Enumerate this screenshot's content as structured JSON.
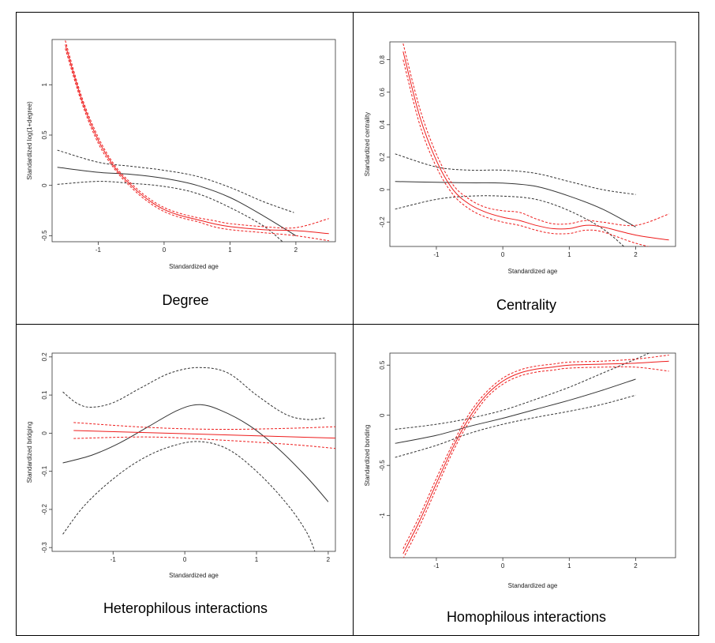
{
  "chart_data": [
    {
      "type": "line",
      "caption": "Degree",
      "xlabel": "Standardized age",
      "ylabel": "Standardized log(1+degree)",
      "xlim": [
        -1.7,
        2.6
      ],
      "ylim": [
        -0.56,
        1.45
      ],
      "xticks": [
        -1,
        0,
        1,
        2
      ],
      "yticks": [
        -0.5,
        0.0,
        0.5,
        1.0
      ],
      "grid": false,
      "series": [
        {
          "name": "black-fit",
          "color": "#333333",
          "style": "solid",
          "x": [
            -1.62,
            -1.0,
            -0.5,
            0.0,
            0.5,
            1.0,
            1.5,
            2.0
          ],
          "y": [
            0.18,
            0.13,
            0.11,
            0.07,
            0.0,
            -0.12,
            -0.3,
            -0.5
          ]
        },
        {
          "name": "black-upper",
          "color": "#333333",
          "style": "dashed",
          "x": [
            -1.62,
            -1.0,
            -0.5,
            0.0,
            0.5,
            1.0,
            1.5,
            1.97
          ],
          "y": [
            0.35,
            0.23,
            0.19,
            0.15,
            0.09,
            -0.02,
            -0.16,
            -0.27
          ]
        },
        {
          "name": "black-lower",
          "color": "#333333",
          "style": "dashed",
          "x": [
            -1.62,
            -1.0,
            -0.5,
            0.0,
            0.5,
            1.0,
            1.5,
            1.8
          ],
          "y": [
            0.01,
            0.04,
            0.02,
            -0.01,
            -0.08,
            -0.22,
            -0.4,
            -0.56
          ]
        },
        {
          "name": "red-fit",
          "color": "#ee1c1c",
          "style": "solid",
          "x": [
            -1.5,
            -1.25,
            -1.0,
            -0.75,
            -0.5,
            -0.25,
            0.0,
            0.25,
            0.5,
            0.75,
            1.0,
            1.5,
            2.0,
            2.5
          ],
          "y": [
            1.4,
            0.85,
            0.45,
            0.18,
            0.0,
            -0.14,
            -0.24,
            -0.3,
            -0.34,
            -0.38,
            -0.41,
            -0.44,
            -0.45,
            -0.48
          ]
        },
        {
          "name": "red-upper",
          "color": "#ee1c1c",
          "style": "dashed",
          "x": [
            -1.5,
            -1.25,
            -1.0,
            -0.75,
            -0.5,
            -0.25,
            0.0,
            0.25,
            0.5,
            0.75,
            1.0,
            1.5,
            2.0,
            2.5
          ],
          "y": [
            1.44,
            0.88,
            0.48,
            0.2,
            0.02,
            -0.12,
            -0.22,
            -0.28,
            -0.32,
            -0.35,
            -0.38,
            -0.41,
            -0.42,
            -0.33
          ]
        },
        {
          "name": "red-lower",
          "color": "#ee1c1c",
          "style": "dashed",
          "x": [
            -1.5,
            -1.25,
            -1.0,
            -0.75,
            -0.5,
            -0.25,
            0.0,
            0.25,
            0.5,
            0.75,
            1.0,
            1.5,
            2.0,
            2.5
          ],
          "y": [
            1.36,
            0.82,
            0.42,
            0.16,
            -0.02,
            -0.16,
            -0.26,
            -0.32,
            -0.36,
            -0.41,
            -0.44,
            -0.47,
            -0.5,
            -0.55
          ]
        }
      ]
    },
    {
      "type": "line",
      "caption": "Centrality",
      "xlabel": "Standardized age",
      "ylabel": "Standardized centrality",
      "xlim": [
        -1.7,
        2.6
      ],
      "ylim": [
        -0.35,
        0.91
      ],
      "xticks": [
        -1,
        0,
        1,
        2
      ],
      "yticks": [
        -0.2,
        0.0,
        0.2,
        0.4,
        0.6,
        0.8
      ],
      "grid": false,
      "series": [
        {
          "name": "black-fit",
          "color": "#333333",
          "style": "solid",
          "x": [
            -1.62,
            -1.0,
            -0.5,
            0.0,
            0.5,
            1.0,
            1.5,
            2.0
          ],
          "y": [
            0.05,
            0.045,
            0.042,
            0.04,
            0.02,
            -0.04,
            -0.12,
            -0.23
          ]
        },
        {
          "name": "black-upper",
          "color": "#333333",
          "style": "dashed",
          "x": [
            -1.62,
            -1.0,
            -0.5,
            0.0,
            0.5,
            1.0,
            1.5,
            2.0
          ],
          "y": [
            0.22,
            0.14,
            0.12,
            0.12,
            0.1,
            0.05,
            0.0,
            -0.03
          ]
        },
        {
          "name": "black-lower",
          "color": "#333333",
          "style": "dashed",
          "x": [
            -1.62,
            -1.0,
            -0.5,
            0.0,
            0.5,
            1.0,
            1.5,
            1.85
          ],
          "y": [
            -0.12,
            -0.06,
            -0.04,
            -0.04,
            -0.06,
            -0.13,
            -0.24,
            -0.36
          ]
        },
        {
          "name": "red-fit",
          "color": "#ee1c1c",
          "style": "solid",
          "x": [
            -1.5,
            -1.25,
            -1.0,
            -0.75,
            -0.5,
            -0.25,
            0.0,
            0.25,
            0.5,
            0.75,
            1.0,
            1.25,
            1.5,
            2.0,
            2.5
          ],
          "y": [
            0.85,
            0.45,
            0.18,
            0.0,
            -0.09,
            -0.14,
            -0.17,
            -0.19,
            -0.22,
            -0.24,
            -0.24,
            -0.22,
            -0.23,
            -0.28,
            -0.31
          ]
        },
        {
          "name": "red-upper",
          "color": "#ee1c1c",
          "style": "dashed",
          "x": [
            -1.5,
            -1.25,
            -1.0,
            -0.75,
            -0.5,
            -0.25,
            0.0,
            0.25,
            0.5,
            0.75,
            1.0,
            1.25,
            1.5,
            2.0,
            2.5
          ],
          "y": [
            0.9,
            0.5,
            0.22,
            0.03,
            -0.06,
            -0.11,
            -0.13,
            -0.14,
            -0.18,
            -0.21,
            -0.21,
            -0.19,
            -0.2,
            -0.22,
            -0.15
          ]
        },
        {
          "name": "red-lower",
          "color": "#ee1c1c",
          "style": "dashed",
          "x": [
            -1.5,
            -1.25,
            -1.0,
            -0.75,
            -0.5,
            -0.25,
            0.0,
            0.25,
            0.5,
            0.75,
            1.0,
            1.25,
            1.5,
            2.0,
            2.5
          ],
          "y": [
            0.8,
            0.4,
            0.14,
            -0.03,
            -0.12,
            -0.17,
            -0.2,
            -0.22,
            -0.25,
            -0.27,
            -0.27,
            -0.25,
            -0.26,
            -0.33,
            -0.38
          ]
        }
      ]
    },
    {
      "type": "line",
      "caption": "Heterophilous interactions",
      "xlabel": "Standardized age",
      "ylabel": "Standardized bridging",
      "xlim": [
        -1.85,
        2.1
      ],
      "ylim": [
        -0.31,
        0.21
      ],
      "xticks": [
        -1,
        0,
        1,
        2
      ],
      "yticks": [
        -0.3,
        -0.2,
        -0.1,
        0.0,
        0.1,
        0.2
      ],
      "grid": false,
      "series": [
        {
          "name": "black-fit",
          "color": "#333333",
          "style": "solid",
          "x": [
            -1.7,
            -1.3,
            -0.9,
            -0.5,
            -0.1,
            0.2,
            0.5,
            0.9,
            1.3,
            1.7,
            2.0
          ],
          "y": [
            -0.078,
            -0.058,
            -0.025,
            0.018,
            0.06,
            0.075,
            0.06,
            0.02,
            -0.04,
            -0.115,
            -0.18
          ]
        },
        {
          "name": "black-upper",
          "color": "#333333",
          "style": "dashed",
          "x": [
            -1.7,
            -1.5,
            -1.3,
            -1.0,
            -0.6,
            -0.2,
            0.2,
            0.6,
            1.0,
            1.4,
            1.7,
            1.95
          ],
          "y": [
            0.108,
            0.078,
            0.068,
            0.08,
            0.12,
            0.158,
            0.172,
            0.158,
            0.1,
            0.05,
            0.036,
            0.04
          ]
        },
        {
          "name": "black-lower",
          "color": "#333333",
          "style": "dashed",
          "x": [
            -1.7,
            -1.4,
            -1.0,
            -0.6,
            -0.2,
            0.2,
            0.6,
            1.0,
            1.4,
            1.7,
            1.85
          ],
          "y": [
            -0.265,
            -0.19,
            -0.12,
            -0.068,
            -0.035,
            -0.022,
            -0.042,
            -0.1,
            -0.18,
            -0.26,
            -0.33
          ]
        },
        {
          "name": "red-fit",
          "color": "#ee1c1c",
          "style": "solid",
          "x": [
            -1.55,
            2.1
          ],
          "y": [
            0.007,
            -0.013
          ]
        },
        {
          "name": "red-upper",
          "color": "#ee1c1c",
          "style": "dashed",
          "x": [
            -1.55,
            -0.5,
            0.5,
            1.5,
            2.1
          ],
          "y": [
            0.028,
            0.015,
            0.01,
            0.013,
            0.017
          ]
        },
        {
          "name": "red-lower",
          "color": "#ee1c1c",
          "style": "dashed",
          "x": [
            -1.55,
            -0.5,
            0.5,
            1.5,
            2.1
          ],
          "y": [
            -0.014,
            -0.01,
            -0.018,
            -0.03,
            -0.04
          ]
        }
      ]
    },
    {
      "type": "line",
      "caption": "Homophilous interactions",
      "xlabel": "Standardized age",
      "ylabel": "Standardized bonding",
      "xlim": [
        -1.7,
        2.6
      ],
      "ylim": [
        -1.42,
        0.62
      ],
      "xticks": [
        -1,
        0,
        1,
        2
      ],
      "yticks": [
        -1.0,
        -0.5,
        0.0,
        0.5
      ],
      "grid": false,
      "series": [
        {
          "name": "black-fit",
          "color": "#333333",
          "style": "solid",
          "x": [
            -1.62,
            -1.0,
            -0.5,
            0.0,
            0.5,
            1.0,
            1.5,
            2.0
          ],
          "y": [
            -0.28,
            -0.2,
            -0.11,
            -0.03,
            0.06,
            0.15,
            0.25,
            0.36
          ]
        },
        {
          "name": "black-upper",
          "color": "#333333",
          "style": "dashed",
          "x": [
            -1.62,
            -1.0,
            -0.5,
            0.0,
            0.5,
            1.0,
            1.5,
            2.0,
            2.2
          ],
          "y": [
            -0.14,
            -0.09,
            -0.03,
            0.05,
            0.16,
            0.28,
            0.42,
            0.56,
            0.62
          ]
        },
        {
          "name": "black-lower",
          "color": "#333333",
          "style": "dashed",
          "x": [
            -1.62,
            -1.0,
            -0.5,
            0.0,
            0.5,
            1.0,
            1.5,
            2.0
          ],
          "y": [
            -0.42,
            -0.3,
            -0.18,
            -0.09,
            -0.02,
            0.04,
            0.11,
            0.2
          ]
        },
        {
          "name": "red-fit",
          "color": "#ee1c1c",
          "style": "solid",
          "x": [
            -1.5,
            -1.25,
            -1.0,
            -0.75,
            -0.5,
            -0.25,
            0.0,
            0.25,
            0.5,
            0.75,
            1.0,
            1.5,
            2.0,
            2.5
          ],
          "y": [
            -1.38,
            -1.05,
            -0.68,
            -0.32,
            -0.02,
            0.2,
            0.34,
            0.42,
            0.46,
            0.48,
            0.5,
            0.51,
            0.52,
            0.54
          ]
        },
        {
          "name": "red-upper",
          "color": "#ee1c1c",
          "style": "dashed",
          "x": [
            -1.5,
            -1.25,
            -1.0,
            -0.75,
            -0.5,
            -0.25,
            0.0,
            0.25,
            0.5,
            0.75,
            1.0,
            1.5,
            2.0,
            2.5
          ],
          "y": [
            -1.33,
            -1.0,
            -0.63,
            -0.28,
            0.02,
            0.23,
            0.37,
            0.45,
            0.49,
            0.51,
            0.53,
            0.54,
            0.56,
            0.6
          ]
        },
        {
          "name": "red-lower",
          "color": "#ee1c1c",
          "style": "dashed",
          "x": [
            -1.5,
            -1.25,
            -1.0,
            -0.75,
            -0.5,
            -0.25,
            0.0,
            0.25,
            0.5,
            0.75,
            1.0,
            1.5,
            2.0,
            2.5
          ],
          "y": [
            -1.43,
            -1.1,
            -0.73,
            -0.36,
            -0.06,
            0.17,
            0.31,
            0.39,
            0.43,
            0.45,
            0.47,
            0.48,
            0.48,
            0.44
          ]
        }
      ]
    }
  ]
}
